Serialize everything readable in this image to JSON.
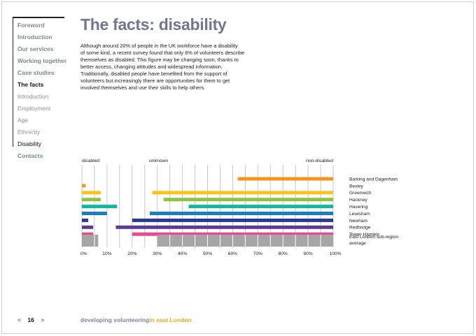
{
  "sidebar": {
    "items": [
      {
        "label": "Foreword",
        "style": "bold"
      },
      {
        "label": "Introduction",
        "style": "bold"
      },
      {
        "label": "Our services",
        "style": "bold"
      },
      {
        "label": "Working together",
        "style": "bold"
      },
      {
        "label": "Case studies",
        "style": "bold"
      },
      {
        "label": "The facts",
        "style": "active"
      },
      {
        "label": "Introduction",
        "style": "sub"
      },
      {
        "label": "Employment",
        "style": "sub"
      },
      {
        "label": "Age",
        "style": "sub"
      },
      {
        "label": "Ethnicity",
        "style": "sub"
      },
      {
        "label": "Disability",
        "style": "active-sub"
      },
      {
        "label": "Contacts",
        "style": "bold"
      }
    ]
  },
  "page": {
    "title": "The facts: disability",
    "body_lines": [
      "Although around 20% of people in the UK workforce have a disability",
      "of some kind, a recent survey found that only 6% of volunteers describe",
      "themselves as disabled. This figure may be changing soon, thanks to",
      "better access, changing attitudes and widespread information.",
      "Traditionally, disabled people have benefited from the support of",
      "volunteers but increasingly there are opportunities for them to get",
      "involved themselves and use their skills to help others."
    ]
  },
  "footer": {
    "prev": "<",
    "page_number": "16",
    "next": ">",
    "title_part1": "developing volunteering",
    "title_part2": " in east London"
  },
  "colors": {
    "title": "#6f7891",
    "grid": "#c8c8c8",
    "average": "#a6a6a6"
  },
  "chart_data": {
    "type": "bar",
    "subtype": "stacked-horizontal-100",
    "segment_labels": [
      "disabled",
      "unknown",
      "non-disabled"
    ],
    "xlim": [
      0,
      100
    ],
    "xticks": [
      "0%",
      "10%",
      "20%",
      "30%",
      "40%",
      "50%",
      "60%",
      "70%",
      "80%",
      "90%",
      "100%"
    ],
    "series": [
      {
        "name": "Barking and Dagenham",
        "color": "#f6941d",
        "disabled": 0,
        "unknown": 62,
        "non_disabled": 38
      },
      {
        "name": "Bexley",
        "color": "#f6941d",
        "disabled": 1.5,
        "unknown": 0,
        "non_disabled": 0
      },
      {
        "name": "Greenwich",
        "color": "#fbc31b",
        "disabled": 7.5,
        "unknown": 20.5,
        "non_disabled": 72
      },
      {
        "name": "Hackney",
        "color": "#8cc542",
        "disabled": 7.5,
        "unknown": 25,
        "non_disabled": 67.5
      },
      {
        "name": "Havering",
        "color": "#12b7a1",
        "disabled": 14,
        "unknown": 28.5,
        "non_disabled": 57.5
      },
      {
        "name": "Lewisham",
        "color": "#1a7cc1",
        "disabled": 10,
        "unknown": 17,
        "non_disabled": 73
      },
      {
        "name": "Newham",
        "color": "#2b3990",
        "disabled": 2.5,
        "unknown": 17.5,
        "non_disabled": 80
      },
      {
        "name": "Redbridge",
        "color": "#5b3c90",
        "disabled": 4.5,
        "unknown": 9,
        "non_disabled": 86.5
      },
      {
        "name": "Tower Hamlets",
        "color": "#e84a8e",
        "disabled": 4.5,
        "unknown": 15.5,
        "non_disabled": 80
      }
    ],
    "average": {
      "name": "East London sub-region average",
      "name_lines": [
        "East London sub-region",
        "average"
      ],
      "disabled": 6.5,
      "unknown": 23.5,
      "non_disabled": 70
    }
  }
}
